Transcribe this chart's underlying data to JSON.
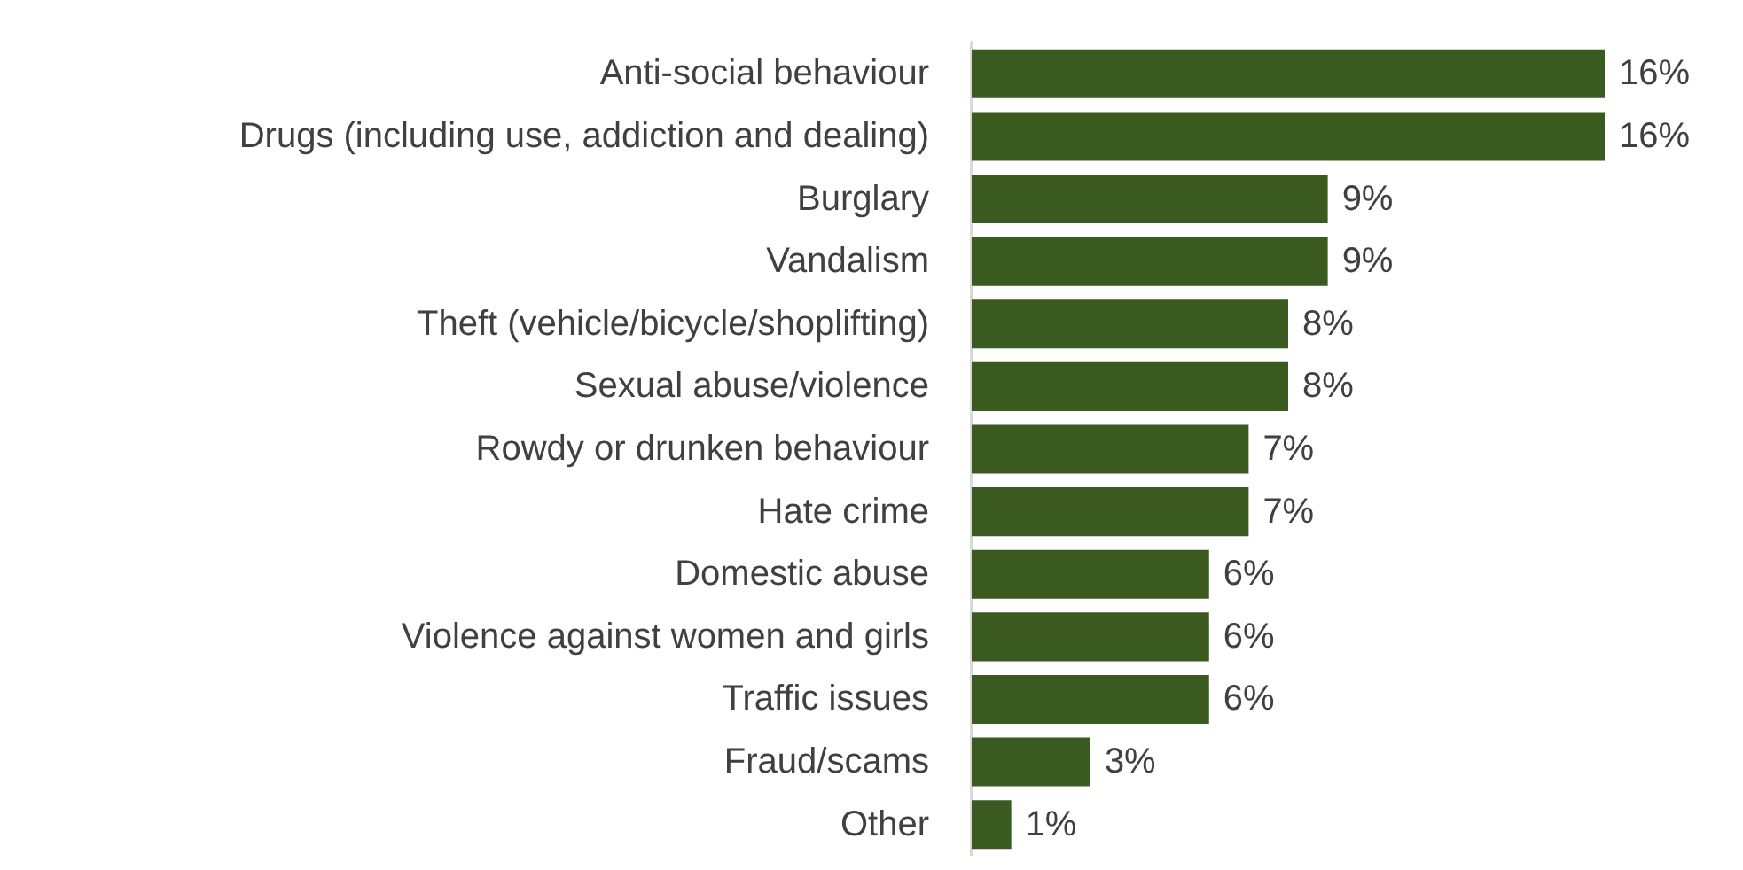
{
  "chart_data": {
    "type": "bar",
    "orientation": "horizontal",
    "categories": [
      "Anti-social behaviour",
      "Drugs (including use, addiction and dealing)",
      "Burglary",
      "Vandalism",
      "Theft (vehicle/bicycle/shoplifting)",
      "Sexual abuse/violence",
      "Rowdy or drunken behaviour",
      "Hate crime",
      "Domestic abuse",
      "Violence against women and girls",
      "Traffic issues",
      "Fraud/scams",
      "Other"
    ],
    "values": [
      16,
      16,
      9,
      9,
      8,
      8,
      7,
      7,
      6,
      6,
      6,
      3,
      1
    ],
    "value_labels": [
      "16%",
      "16%",
      "9%",
      "9%",
      "8%",
      "8%",
      "7%",
      "7%",
      "6%",
      "6%",
      "6%",
      "3%",
      "1%"
    ],
    "color": "#3a5a1f"
  }
}
